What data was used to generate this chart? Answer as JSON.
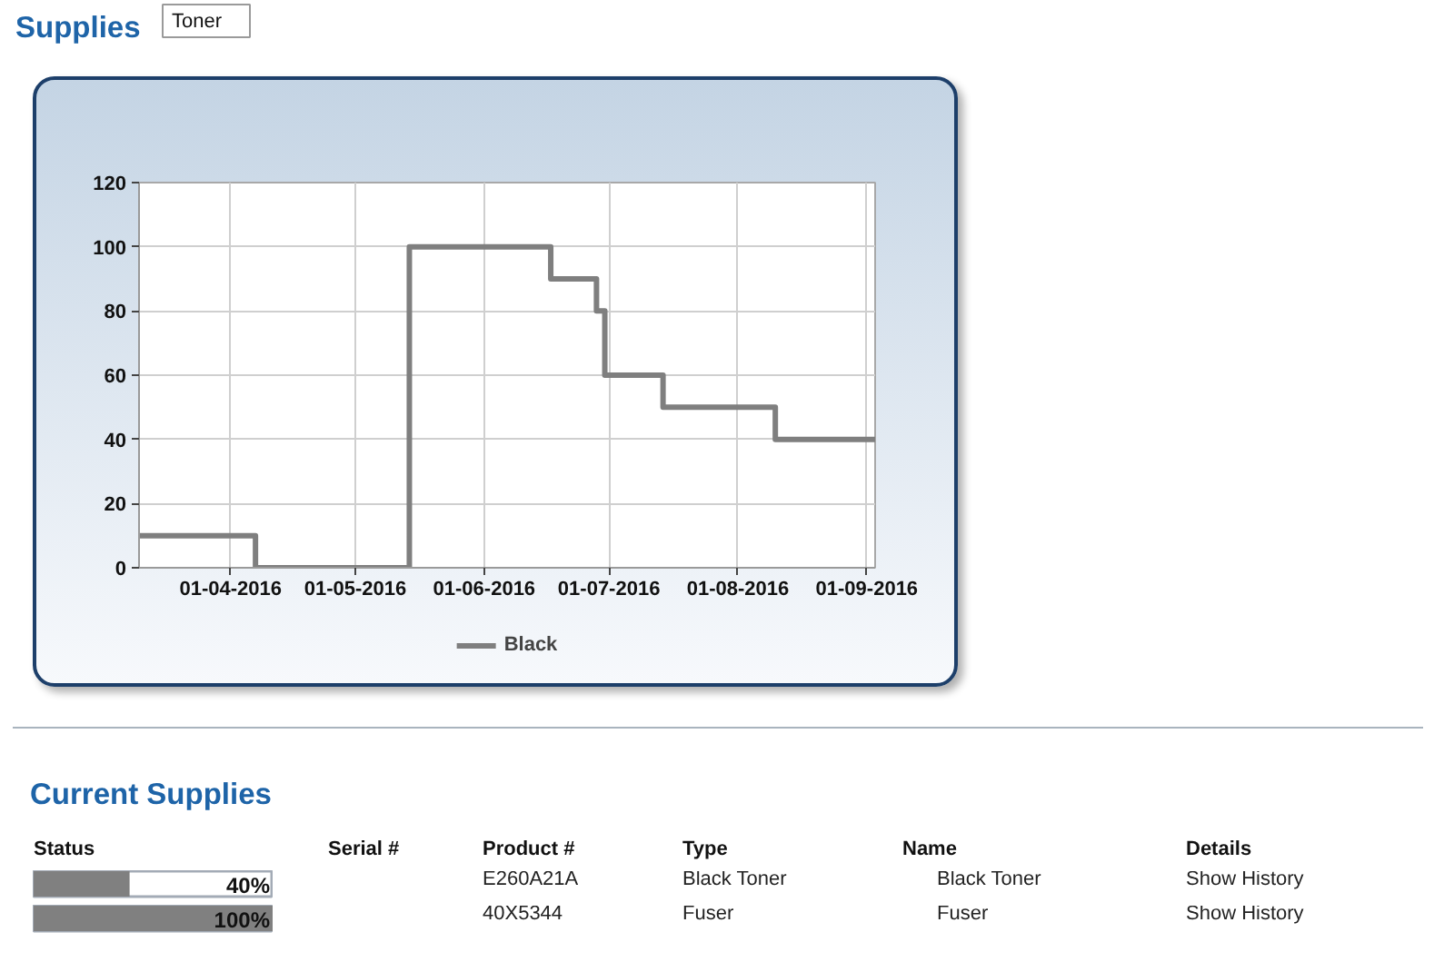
{
  "chart_data": [
    {
      "type": "step",
      "title": "Supplies",
      "subtitle": "Toner",
      "x": [
        "2016-03-10",
        "2016-03-21",
        "2016-04-07",
        "2016-05-14",
        "2016-06-17",
        "2016-06-28",
        "2016-06-30",
        "2016-07-14",
        "2016-08-10",
        "2016-09-03"
      ],
      "series": [
        {
          "name": "Black",
          "color": "#7f7f7f",
          "values": [
            10,
            10,
            0,
            100,
            90,
            80,
            60,
            50,
            40,
            40
          ]
        }
      ],
      "xlim": [
        "2016-03-10",
        "2016-09-03"
      ],
      "xticks": [
        {
          "value": "2016-04-01",
          "label": "01-04-2016"
        },
        {
          "value": "2016-05-01",
          "label": "01-05-2016"
        },
        {
          "value": "2016-06-01",
          "label": "01-06-2016"
        },
        {
          "value": "2016-07-01",
          "label": "01-07-2016"
        },
        {
          "value": "2016-08-01",
          "label": "01-08-2016"
        },
        {
          "value": "2016-09-01",
          "label": "01-09-2016"
        }
      ],
      "ylim": [
        0,
        120
      ],
      "yticks": [
        0,
        20,
        40,
        60,
        80,
        100,
        120
      ],
      "grid": true,
      "legend": "bottom"
    },
    {
      "type": "bar",
      "orientation": "horizontal",
      "title": "Current Supplies",
      "xlabel": "Status",
      "categories": [
        null,
        null
      ],
      "values": [
        40,
        100
      ],
      "value_labels": [
        "40%",
        "100%"
      ],
      "color": "#808080",
      "xlim": [
        0,
        100
      ],
      "tick_labels": false,
      "annotations": [
        "Serial #",
        "Product #",
        "Type",
        "Name",
        "Details",
        "E260A21A",
        "Black Toner",
        "Black Toner",
        "Show History",
        "40X5344",
        "Fuser",
        "Fuser",
        "Show History"
      ]
    }
  ]
}
